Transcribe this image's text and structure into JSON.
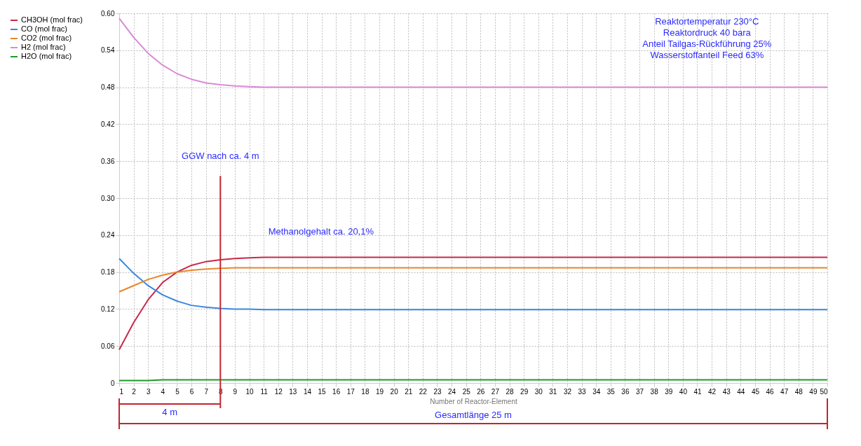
{
  "chart_data": {
    "type": "line",
    "xlabel": "Number of Reactor-Element",
    "x": [
      1,
      2,
      3,
      4,
      5,
      6,
      7,
      8,
      9,
      10,
      11,
      12,
      13,
      14,
      15,
      16,
      17,
      18,
      19,
      20,
      21,
      22,
      23,
      24,
      25,
      26,
      27,
      28,
      29,
      30,
      31,
      32,
      33,
      34,
      35,
      36,
      37,
      38,
      39,
      40,
      41,
      42,
      43,
      44,
      45,
      46,
      47,
      48,
      49,
      50
    ],
    "series": [
      {
        "name": "CH3OH (mol frac)",
        "color": "#c8284a",
        "values": [
          0.054,
          0.098,
          0.135,
          0.163,
          0.18,
          0.191,
          0.197,
          0.2,
          0.202,
          0.203,
          0.204,
          0.204,
          0.204,
          0.204,
          0.204,
          0.204,
          0.204,
          0.204,
          0.204,
          0.204,
          0.204,
          0.204,
          0.204,
          0.204,
          0.204,
          0.204,
          0.204,
          0.204,
          0.204,
          0.204,
          0.204,
          0.204,
          0.204,
          0.204,
          0.204,
          0.204,
          0.204,
          0.204,
          0.204,
          0.204,
          0.204,
          0.204,
          0.204,
          0.204,
          0.204,
          0.204,
          0.204,
          0.204,
          0.204,
          0.204
        ]
      },
      {
        "name": "CO (mol frac)",
        "color": "#3a87e0",
        "values": [
          0.202,
          0.178,
          0.158,
          0.143,
          0.133,
          0.126,
          0.123,
          0.121,
          0.12,
          0.12,
          0.119,
          0.119,
          0.119,
          0.119,
          0.119,
          0.119,
          0.119,
          0.119,
          0.119,
          0.119,
          0.119,
          0.119,
          0.119,
          0.119,
          0.119,
          0.119,
          0.119,
          0.119,
          0.119,
          0.119,
          0.119,
          0.119,
          0.119,
          0.119,
          0.119,
          0.119,
          0.119,
          0.119,
          0.119,
          0.119,
          0.119,
          0.119,
          0.119,
          0.119,
          0.119,
          0.119,
          0.119,
          0.119,
          0.119,
          0.119
        ]
      },
      {
        "name": "CO2 (mol frac)",
        "color": "#e8862a",
        "values": [
          0.148,
          0.158,
          0.168,
          0.175,
          0.18,
          0.183,
          0.185,
          0.186,
          0.187,
          0.187,
          0.187,
          0.187,
          0.187,
          0.187,
          0.187,
          0.187,
          0.187,
          0.187,
          0.187,
          0.187,
          0.187,
          0.187,
          0.187,
          0.187,
          0.187,
          0.187,
          0.187,
          0.187,
          0.187,
          0.187,
          0.187,
          0.187,
          0.187,
          0.187,
          0.187,
          0.187,
          0.187,
          0.187,
          0.187,
          0.187,
          0.187,
          0.187,
          0.187,
          0.187,
          0.187,
          0.187,
          0.187,
          0.187,
          0.187,
          0.187
        ]
      },
      {
        "name": "H2 (mol frac)",
        "color": "#d98bd6",
        "values": [
          0.592,
          0.561,
          0.535,
          0.516,
          0.502,
          0.493,
          0.487,
          0.484,
          0.482,
          0.481,
          0.48,
          0.48,
          0.48,
          0.48,
          0.48,
          0.48,
          0.48,
          0.48,
          0.48,
          0.48,
          0.48,
          0.48,
          0.48,
          0.48,
          0.48,
          0.48,
          0.48,
          0.48,
          0.48,
          0.48,
          0.48,
          0.48,
          0.48,
          0.48,
          0.48,
          0.48,
          0.48,
          0.48,
          0.48,
          0.48,
          0.48,
          0.48,
          0.48,
          0.48,
          0.48,
          0.48,
          0.48,
          0.48,
          0.48,
          0.48
        ]
      },
      {
        "name": "H2O (mol frac)",
        "color": "#1e9a2a",
        "values": [
          0.004,
          0.004,
          0.004,
          0.005,
          0.005,
          0.005,
          0.005,
          0.005,
          0.005,
          0.005,
          0.005,
          0.005,
          0.005,
          0.005,
          0.005,
          0.005,
          0.005,
          0.005,
          0.005,
          0.005,
          0.005,
          0.005,
          0.005,
          0.005,
          0.005,
          0.005,
          0.005,
          0.005,
          0.005,
          0.005,
          0.005,
          0.005,
          0.005,
          0.005,
          0.005,
          0.005,
          0.005,
          0.005,
          0.005,
          0.005,
          0.005,
          0.005,
          0.005,
          0.005,
          0.005,
          0.005,
          0.005,
          0.005,
          0.005,
          0.005
        ]
      }
    ],
    "xlim": [
      1,
      50
    ],
    "xticks": [
      1,
      2,
      3,
      4,
      5,
      6,
      7,
      8,
      9,
      10,
      11,
      12,
      13,
      14,
      15,
      16,
      17,
      18,
      19,
      20,
      21,
      22,
      23,
      24,
      25,
      26,
      27,
      28,
      29,
      30,
      31,
      32,
      33,
      34,
      35,
      36,
      37,
      38,
      39,
      40,
      41,
      42,
      43,
      44,
      45,
      46,
      47,
      48,
      49,
      50
    ],
    "ylim": [
      0,
      0.6
    ],
    "yticks": [
      {
        "value": 0,
        "label": "0"
      },
      {
        "value": 0.06,
        "label": "0.06"
      },
      {
        "value": 0.12,
        "label": "0.12"
      },
      {
        "value": 0.18,
        "label": "0.18"
      },
      {
        "value": 0.24,
        "label": "0.24"
      },
      {
        "value": 0.3,
        "label": "0.30"
      },
      {
        "value": 0.36,
        "label": "0.36"
      },
      {
        "value": 0.42,
        "label": "0.42"
      },
      {
        "value": 0.48,
        "label": "0.48"
      },
      {
        "value": 0.54,
        "label": "0.54"
      },
      {
        "value": 0.6,
        "label": "0.60"
      }
    ],
    "ref_lines": [
      {
        "axis": "x",
        "value": 8,
        "label": "GGW nach ca. 4 m",
        "color": "#c0262e"
      }
    ],
    "annotations": [
      "Methanolgehalt ca. 20,1%",
      "Reaktortemperatur 230°C",
      "Reaktordruck 40 bara",
      "Anteil Tailgas-Rückführung 25%",
      "Wasserstoffanteil Feed 63%",
      "4 m",
      "Gesamtlänge 25 m"
    ],
    "grid": true,
    "legend": "left",
    "marker": "none",
    "line_style": "solid"
  }
}
